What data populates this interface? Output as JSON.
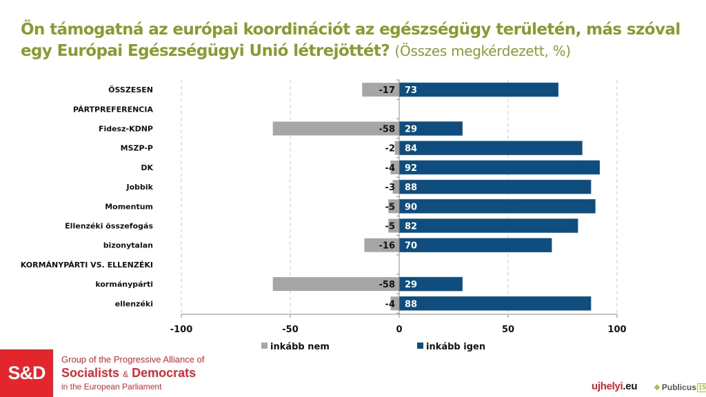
{
  "title": {
    "main": "Ön támogatná az európai koordinációt az egészségügy területén, más szóval egy Európai Egészségügyi Unió létrejöttét?",
    "subtitle": "(Összes megkérdezett, %)"
  },
  "colors": {
    "title": "#8b9a2f",
    "negative": "#a6a6a6",
    "positive": "#0e4d7d",
    "brand_red": "#e3262c"
  },
  "chart_data": {
    "type": "bar",
    "orientation": "horizontal-diverging",
    "title": "Ön támogatná az európai koordinációt az egészségügy területén, más szóval egy Európai Egészségügyi Unió létrejöttét? (Összes megkérdezett, %)",
    "categories": [
      "ÖSSZESEN",
      "PÁRTPREFERENCIA",
      "Fidesz-KDNP",
      "MSZP-P",
      "DK",
      "Jobbik",
      "Momentum",
      "Ellenzéki összefogás",
      "bizonytalan",
      "KORMÁNYPÁRTI VS. ELLENZÉKI",
      "kormánypárti",
      "ellenzéki"
    ],
    "series": [
      {
        "name": "inkább nem",
        "color": "#a6a6a6",
        "values": [
          -17,
          null,
          -58,
          -2,
          -4,
          -3,
          -5,
          -5,
          -16,
          null,
          -58,
          -4
        ]
      },
      {
        "name": "inkább igen",
        "color": "#0e4d7d",
        "values": [
          73,
          null,
          29,
          84,
          92,
          88,
          90,
          82,
          70,
          null,
          29,
          88
        ]
      }
    ],
    "xlim": [
      -100,
      100
    ],
    "xticks": [
      -100,
      -50,
      0,
      50,
      100
    ],
    "xtick_labels": [
      "-100",
      "-50",
      "0",
      "50",
      "100"
    ],
    "grid": "vertical dashed",
    "legend": "bottom-center",
    "xlabel": "",
    "ylabel": ""
  },
  "legend": {
    "items": [
      {
        "label": "inkább nem",
        "color": "#a6a6a6"
      },
      {
        "label": "inkább igen",
        "color": "#0e4d7d"
      }
    ]
  },
  "footer": {
    "sd_logo": "S&D",
    "sd_line1": "Group of the Progressive Alliance of",
    "sd_line2_a": "Socialists",
    "sd_line2_amp": "&",
    "sd_line2_b": "Democrats",
    "sd_line3": "in the European Parliament",
    "ujhelyi_a": "ujhelyi",
    "ujhelyi_b": ".eu",
    "publicus": "Publicus",
    "publicus_num": "15"
  }
}
